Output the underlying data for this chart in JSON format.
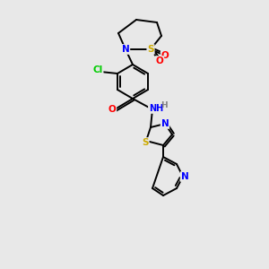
{
  "background_color": "#e8e8e8",
  "bond_color": "#000000",
  "atom_colors": {
    "N": "#0000ff",
    "O": "#ff0000",
    "S": "#ccaa00",
    "Cl": "#00cc00",
    "C": "#000000",
    "H": "#808080"
  },
  "figsize": [
    3.0,
    3.0
  ],
  "dpi": 100
}
